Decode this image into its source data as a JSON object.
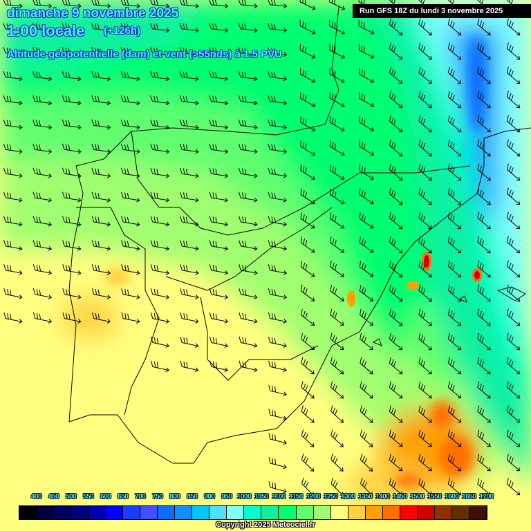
{
  "header": {
    "date": "dimanche 9 novembre 2025",
    "time": "1:00 locale",
    "lead": "(+126h)",
    "parameter": "Altitude géopotentielle (dam) et vent (>55nds) à 1.5 PVU",
    "run": "Run GFS 18Z du lundi 3 novembre 2025"
  },
  "legend": {
    "ticks": [
      "400",
      "450",
      "500",
      "550",
      "600",
      "650",
      "700",
      "750",
      "800",
      "850",
      "900",
      "950",
      "1000",
      "1050",
      "1100",
      "1150",
      "1200",
      "1250",
      "1300",
      "1350",
      "1400",
      "1450",
      "1500",
      "1550",
      "1600",
      "1650",
      "1700"
    ],
    "colors": [
      "#000000",
      "#000040",
      "#000060",
      "#000080",
      "#0000b0",
      "#0000ff",
      "#1a3cff",
      "#4050ff",
      "#0c6cff",
      "#1090ff",
      "#00c8ff",
      "#50e0ff",
      "#80ffff",
      "#00ffd0",
      "#10f0a0",
      "#00ff70",
      "#60ff70",
      "#a0ff70",
      "#ffff80",
      "#ffd040",
      "#ffa000",
      "#ff7000",
      "#ff0000",
      "#d00000",
      "#903000",
      "#603000",
      "#401000"
    ]
  },
  "copyright": "Copyright 2025 Meteociel.fr"
}
